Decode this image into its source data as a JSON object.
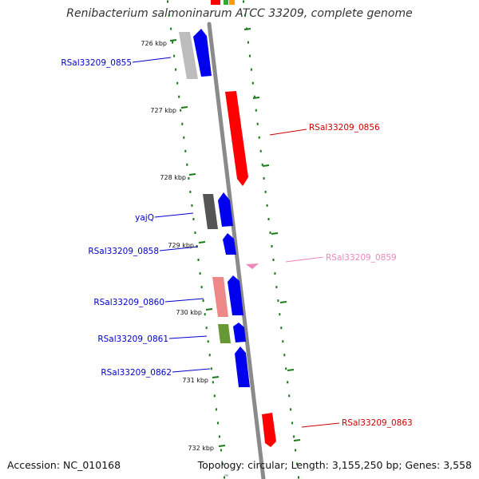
{
  "title": "Renibacterium salmoninarum ATCC 33209, complete genome",
  "footer": {
    "accession": "Accession: NC_010168",
    "summary": "Topology: circular; Length: 3,155,250 bp; Genes: 3,558"
  },
  "colors": {
    "backbone": "#8a8a8a",
    "tick": "#1a7a1a",
    "label_blue": "#0000cc",
    "label_red": "#cc0000",
    "label_pink": "#ee88bb"
  },
  "ticks": [
    {
      "label": "726 kbp"
    },
    {
      "label": "727 kbp"
    },
    {
      "label": "728 kbp"
    },
    {
      "label": "729 kbp"
    },
    {
      "label": "730 kbp"
    },
    {
      "label": "731 kbp"
    },
    {
      "label": "732 kbp"
    }
  ],
  "labels": [
    {
      "text": "RSal33209_0855",
      "color": "#0000cc"
    },
    {
      "text": "RSal33209_0856",
      "color": "#cc0000"
    },
    {
      "text": "yajQ",
      "color": "#0000cc"
    },
    {
      "text": "RSal33209_0858",
      "color": "#0000cc"
    },
    {
      "text": "RSal33209_0859",
      "color": "#ee88bb"
    },
    {
      "text": "RSal33209_0860",
      "color": "#0000cc"
    },
    {
      "text": "RSal33209_0861",
      "color": "#0000cc"
    },
    {
      "text": "RSal33209_0862",
      "color": "#0000cc"
    },
    {
      "text": "RSal33209_0863",
      "color": "#cc0000"
    }
  ]
}
